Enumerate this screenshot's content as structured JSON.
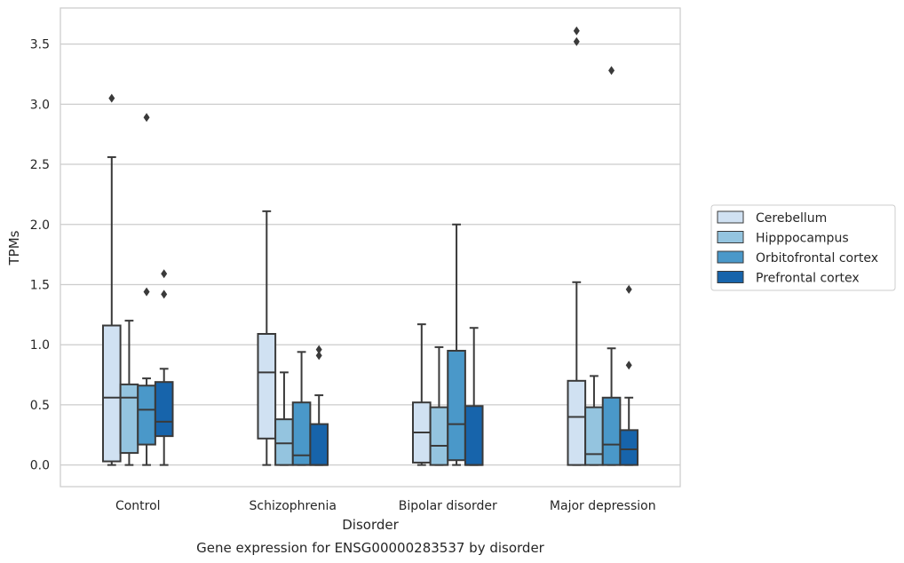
{
  "chart_data": {
    "type": "boxplot",
    "title": "Gene expression for ENSG00000283537 by disorder",
    "xlabel": "Disorder",
    "ylabel": "TPMs",
    "ylim": [
      -0.18,
      3.8
    ],
    "yticks": [
      0.0,
      0.5,
      1.0,
      1.5,
      2.0,
      2.5,
      3.0,
      3.5
    ],
    "ytick_labels": [
      "0.0",
      "0.5",
      "1.0",
      "1.5",
      "2.0",
      "2.5",
      "3.0",
      "3.5"
    ],
    "categories": [
      "Control",
      "Schizophrenia",
      "Bipolar disorder",
      "Major depression"
    ],
    "grid": "horizontal",
    "legend_position": "right",
    "series": [
      {
        "name": "Cerebellum",
        "color": "#d0e1f2",
        "boxes": [
          {
            "whislo": 0.0,
            "q1": 0.03,
            "med": 0.56,
            "q3": 1.16,
            "whishi": 2.56,
            "fliers": [
              3.05
            ]
          },
          {
            "whislo": 0.0,
            "q1": 0.22,
            "med": 0.77,
            "q3": 1.09,
            "whishi": 2.11,
            "fliers": []
          },
          {
            "whislo": 0.0,
            "q1": 0.02,
            "med": 0.27,
            "q3": 0.52,
            "whishi": 1.17,
            "fliers": []
          },
          {
            "whislo": 0.0,
            "q1": 0.0,
            "med": 0.4,
            "q3": 0.7,
            "whishi": 1.52,
            "fliers": [
              3.52,
              3.61
            ]
          }
        ]
      },
      {
        "name": "Hipppocampus",
        "color": "#94c4df",
        "boxes": [
          {
            "whislo": 0.0,
            "q1": 0.1,
            "med": 0.56,
            "q3": 0.67,
            "whishi": 1.2,
            "fliers": []
          },
          {
            "whislo": 0.0,
            "q1": 0.0,
            "med": 0.18,
            "q3": 0.38,
            "whishi": 0.77,
            "fliers": []
          },
          {
            "whislo": 0.0,
            "q1": 0.0,
            "med": 0.16,
            "q3": 0.48,
            "whishi": 0.98,
            "fliers": []
          },
          {
            "whislo": 0.0,
            "q1": 0.0,
            "med": 0.09,
            "q3": 0.48,
            "whishi": 0.74,
            "fliers": []
          }
        ]
      },
      {
        "name": "Orbitofrontal cortex",
        "color": "#4a98c9",
        "boxes": [
          {
            "whislo": 0.0,
            "q1": 0.17,
            "med": 0.46,
            "q3": 0.66,
            "whishi": 0.72,
            "fliers": [
              1.44,
              2.89
            ]
          },
          {
            "whislo": 0.0,
            "q1": 0.0,
            "med": 0.08,
            "q3": 0.52,
            "whishi": 0.94,
            "fliers": []
          },
          {
            "whislo": 0.0,
            "q1": 0.04,
            "med": 0.34,
            "q3": 0.95,
            "whishi": 2.0,
            "fliers": []
          },
          {
            "whislo": 0.0,
            "q1": 0.0,
            "med": 0.17,
            "q3": 0.56,
            "whishi": 0.97,
            "fliers": [
              3.28
            ]
          }
        ]
      },
      {
        "name": "Prefrontal cortex",
        "color": "#1764ab",
        "boxes": [
          {
            "whislo": 0.0,
            "q1": 0.24,
            "med": 0.36,
            "q3": 0.69,
            "whishi": 0.8,
            "fliers": [
              1.42,
              1.59
            ]
          },
          {
            "whislo": 0.0,
            "q1": 0.0,
            "med": 0.0,
            "q3": 0.34,
            "whishi": 0.58,
            "fliers": [
              0.91,
              0.96
            ]
          },
          {
            "whislo": 0.0,
            "q1": 0.0,
            "med": 0.0,
            "q3": 0.49,
            "whishi": 1.14,
            "fliers": []
          },
          {
            "whislo": 0.0,
            "q1": 0.0,
            "med": 0.13,
            "q3": 0.29,
            "whishi": 0.56,
            "fliers": [
              0.83,
              1.46
            ]
          }
        ]
      }
    ]
  }
}
